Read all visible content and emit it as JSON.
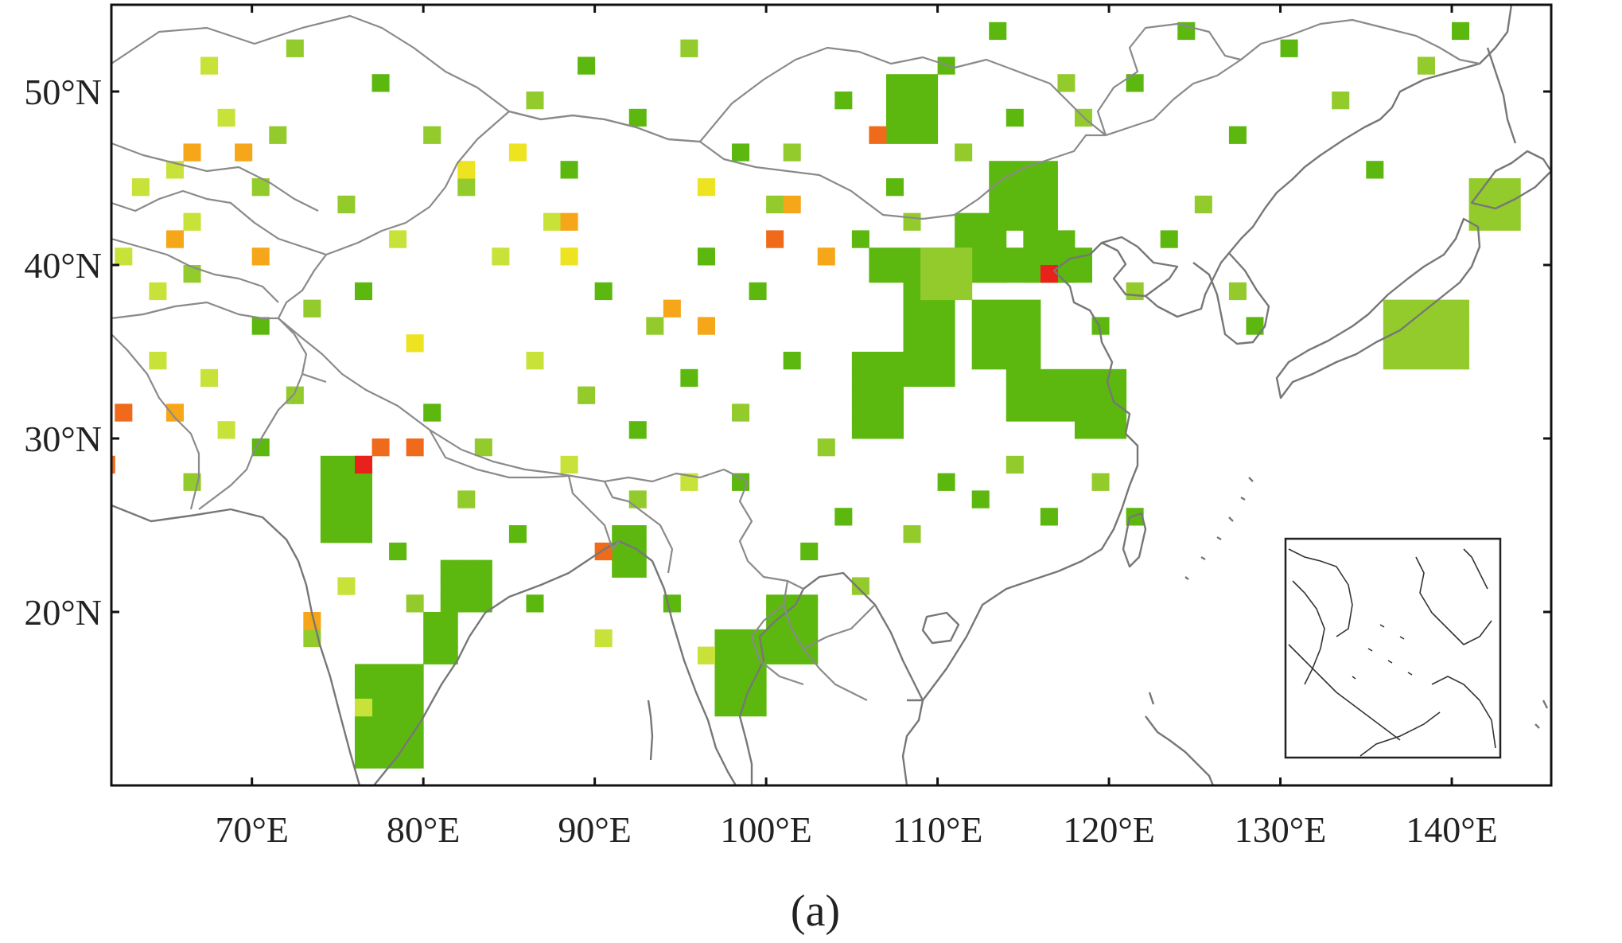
{
  "figure": {
    "caption": "(a)"
  },
  "axes": {
    "lon_ticks": [
      {
        "value": 70,
        "label": "70°E"
      },
      {
        "value": 80,
        "label": "80°E"
      },
      {
        "value": 90,
        "label": "90°E"
      },
      {
        "value": 100,
        "label": "100°E"
      },
      {
        "value": 110,
        "label": "110°E"
      },
      {
        "value": 120,
        "label": "120°E"
      },
      {
        "value": 130,
        "label": "130°E"
      },
      {
        "value": 140,
        "label": "140°E"
      }
    ],
    "lat_ticks": [
      {
        "value": 50,
        "label": "50°N"
      },
      {
        "value": 40,
        "label": "40°N"
      },
      {
        "value": 30,
        "label": "30°N"
      },
      {
        "value": 20,
        "label": "20°N"
      }
    ],
    "lon_range": [
      61.8,
      145.8
    ],
    "lat_range": [
      10,
      55
    ]
  },
  "map": {
    "region": "East, Central and South Asia",
    "projection": "equirectangular",
    "grid_cell_deg": 1,
    "has_inset": true,
    "inset_region": "South China Sea",
    "colors": {
      "green": "#5cb80f",
      "light_green": "#93cb2c",
      "yellow_green": "#c8e23a",
      "yellow": "#eee320",
      "orange": "#f6a619",
      "red_orange": "#f06a1c",
      "red": "#e8221b",
      "outline": "#777777"
    }
  }
}
